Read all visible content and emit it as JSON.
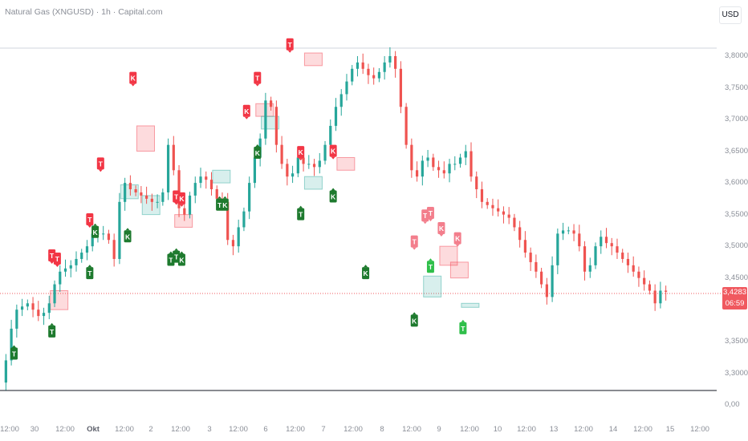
{
  "header": {
    "title": "Natural Gas (XNGUSD) · 1h · Capital.com",
    "currency": "USD"
  },
  "last_price": {
    "value": "3,4283",
    "countdown": "06:59",
    "color": "#f0595f"
  },
  "colors": {
    "up": "#26a69a",
    "down": "#ef5350",
    "buy": "#1e7a2e",
    "sell": "#f23645"
  },
  "chart_data": {
    "type": "candlestick",
    "y_ticks": [
      "3,8000",
      "3,7500",
      "3,7000",
      "3,6500",
      "3,6000",
      "3,5500",
      "3,5000",
      "3,4500",
      "3,3500",
      "3,3000",
      "0,00"
    ],
    "x_ticks": [
      "12:00",
      "30",
      "12:00",
      "Okt",
      "12:00",
      "2",
      "12:00",
      "3",
      "12:00",
      "6",
      "12:00",
      "7",
      "12:00",
      "8",
      "12:00",
      "9",
      "12:00",
      "10",
      "12:00",
      "13",
      "12:00",
      "14",
      "12:00",
      "15",
      "12:00"
    ],
    "ylim": [
      3.27,
      3.82
    ],
    "path": [
      3.285,
      3.32,
      3.37,
      3.4,
      3.405,
      3.41,
      3.4,
      3.39,
      3.395,
      3.41,
      3.44,
      3.46,
      3.465,
      3.47,
      3.48,
      3.49,
      3.5,
      3.52,
      3.52,
      3.52,
      3.51,
      3.48,
      3.57,
      3.6,
      3.59,
      3.585,
      3.58,
      3.575,
      3.57,
      3.57,
      3.585,
      3.66,
      3.62,
      3.56,
      3.55,
      3.58,
      3.6,
      3.61,
      3.605,
      3.59,
      3.575,
      3.57,
      3.51,
      3.5,
      3.53,
      3.555,
      3.6,
      3.64,
      3.67,
      3.73,
      3.72,
      3.66,
      3.63,
      3.61,
      3.615,
      3.64,
      3.63,
      3.63,
      3.625,
      3.635,
      3.66,
      3.69,
      3.72,
      3.74,
      3.76,
      3.78,
      3.79,
      3.78,
      3.77,
      3.765,
      3.775,
      3.79,
      3.8,
      3.78,
      3.72,
      3.66,
      3.62,
      3.61,
      3.635,
      3.64,
      3.625,
      3.62,
      3.615,
      3.63,
      3.63,
      3.64,
      3.65,
      3.61,
      3.59,
      3.57,
      3.565,
      3.56,
      3.555,
      3.55,
      3.545,
      3.53,
      3.51,
      3.49,
      3.475,
      3.46,
      3.44,
      3.42,
      3.47,
      3.52,
      3.525,
      3.525,
      3.52,
      3.5,
      3.46,
      3.47,
      3.5,
      3.515,
      3.505,
      3.5,
      3.49,
      3.48,
      3.47,
      3.46,
      3.45,
      3.44,
      3.43,
      3.41,
      3.43,
      3.4283
    ],
    "signals": [
      {
        "label": "T",
        "kind": "buy",
        "i": 2,
        "v": 3.33
      },
      {
        "label": "T",
        "kind": "buy",
        "i": 9,
        "v": 3.365
      },
      {
        "label": "T",
        "kind": "sell",
        "i": 9,
        "v": 3.485
      },
      {
        "label": "T",
        "kind": "sell",
        "i": 10,
        "v": 3.48
      },
      {
        "label": "T",
        "kind": "buy",
        "i": 16,
        "v": 3.457
      },
      {
        "label": "T",
        "kind": "sell",
        "i": 16,
        "v": 3.542
      },
      {
        "label": "K",
        "kind": "buy",
        "i": 17,
        "v": 3.522
      },
      {
        "label": "T",
        "kind": "sell",
        "i": 18,
        "v": 3.63
      },
      {
        "label": "K",
        "kind": "buy",
        "i": 23,
        "v": 3.515
      },
      {
        "label": "K",
        "kind": "sell",
        "i": 24,
        "v": 3.765
      },
      {
        "label": "T",
        "kind": "buy",
        "i": 31,
        "v": 3.478
      },
      {
        "label": "T",
        "kind": "buy",
        "i": 32,
        "v": 3.483
      },
      {
        "label": "K",
        "kind": "buy",
        "i": 33,
        "v": 3.478
      },
      {
        "label": "T",
        "kind": "sell",
        "i": 32,
        "v": 3.578
      },
      {
        "label": "K",
        "kind": "sell",
        "i": 33,
        "v": 3.575
      },
      {
        "label": "T",
        "kind": "buy",
        "i": 40,
        "v": 3.565
      },
      {
        "label": "K",
        "kind": "buy",
        "i": 41,
        "v": 3.565
      },
      {
        "label": "K",
        "kind": "sell",
        "i": 45,
        "v": 3.713
      },
      {
        "label": "K",
        "kind": "buy",
        "i": 47,
        "v": 3.647
      },
      {
        "label": "T",
        "kind": "sell",
        "i": 47,
        "v": 3.765
      },
      {
        "label": "T",
        "kind": "sell",
        "i": 53,
        "v": 3.818
      },
      {
        "label": "K",
        "kind": "sell",
        "i": 55,
        "v": 3.648
      },
      {
        "label": "T",
        "kind": "buy",
        "i": 55,
        "v": 3.55
      },
      {
        "label": "K",
        "kind": "sell",
        "i": 61,
        "v": 3.65
      },
      {
        "label": "K",
        "kind": "buy",
        "i": 61,
        "v": 3.578
      },
      {
        "label": "K",
        "kind": "buy",
        "i": 67,
        "v": 3.457
      },
      {
        "label": "T",
        "kind": "sell",
        "i": 76,
        "v": 3.507
      },
      {
        "label": "T",
        "kind": "sell",
        "i": 78,
        "v": 3.548
      },
      {
        "label": "T",
        "kind": "sell",
        "i": 79,
        "v": 3.552
      },
      {
        "label": "T",
        "kind": "buy",
        "i": 79,
        "v": 3.467
      },
      {
        "label": "K",
        "kind": "buy",
        "i": 76,
        "v": 3.382
      },
      {
        "label": "K",
        "kind": "sell",
        "i": 81,
        "v": 3.528
      },
      {
        "label": "K",
        "kind": "sell",
        "i": 84,
        "v": 3.512
      },
      {
        "label": "T",
        "kind": "buy",
        "i": 85,
        "v": 3.37
      }
    ]
  }
}
